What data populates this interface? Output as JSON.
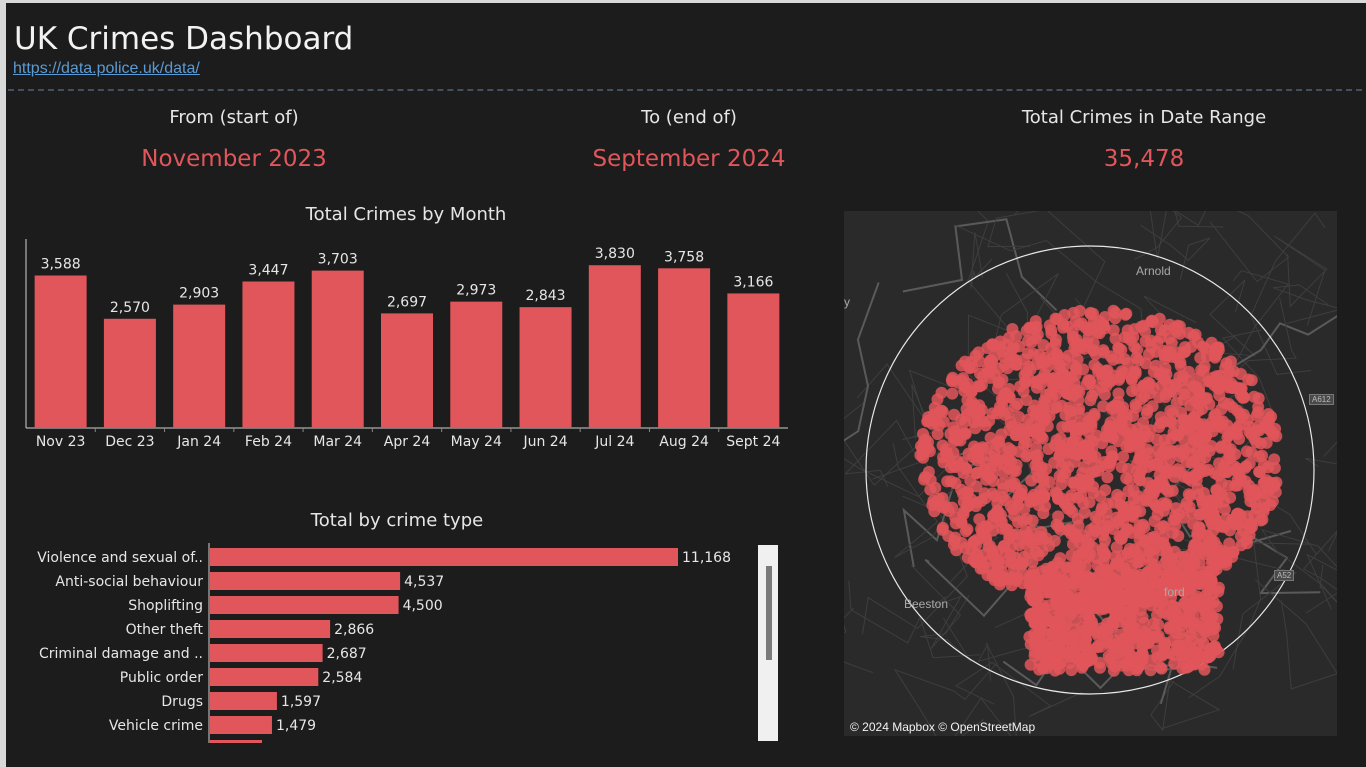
{
  "header": {
    "title": "UK Crimes Dashboard",
    "link": "https://data.police.uk/data/"
  },
  "kpis": [
    {
      "label": "From (start of)",
      "value": "November 2023"
    },
    {
      "label": "To  (end of)",
      "value": "September 2024"
    },
    {
      "label": "Total Crimes in Date Range",
      "value": "35,478"
    }
  ],
  "colors": {
    "accent": "#e0565b",
    "background": "#1c1c1c",
    "link": "#5b9bd5"
  },
  "chart_data": [
    {
      "type": "bar",
      "title": "Total Crimes by Month",
      "categories": [
        "Nov 23",
        "Dec 23",
        "Jan 24",
        "Feb 24",
        "Mar 24",
        "Apr 24",
        "May 24",
        "Jun 24",
        "Jul 24",
        "Aug 24",
        "Sept 24"
      ],
      "values": [
        3588,
        2570,
        2903,
        3447,
        3703,
        2697,
        2973,
        2843,
        3830,
        3758,
        3166
      ],
      "value_labels": [
        "3,588",
        "2,570",
        "2,903",
        "3,447",
        "3,703",
        "2,697",
        "2,973",
        "2,843",
        "3,830",
        "3,758",
        "3,166"
      ],
      "ylim": [
        0,
        4000
      ],
      "grid": false
    },
    {
      "type": "bar",
      "orientation": "horizontal",
      "title": "Total by crime type",
      "categories": [
        "Violence and sexual of..",
        "Anti-social behaviour",
        "Shoplifting",
        "Other theft",
        "Criminal damage and ..",
        "Public order",
        "Drugs",
        "Vehicle crime"
      ],
      "values": [
        11168,
        4537,
        4500,
        2866,
        2687,
        2584,
        1597,
        1479
      ],
      "value_labels": [
        "11,168",
        "4,537",
        "4,500",
        "2,866",
        "2,687",
        "2,584",
        "1,597",
        "1,479"
      ],
      "grid": false
    }
  ],
  "map": {
    "places": [
      "Arnold",
      "Beeston",
      "y",
      "ford"
    ],
    "road_badges": [
      "A612",
      "A52"
    ],
    "attribution": "© 2024 Mapbox © OpenStreetMap"
  }
}
